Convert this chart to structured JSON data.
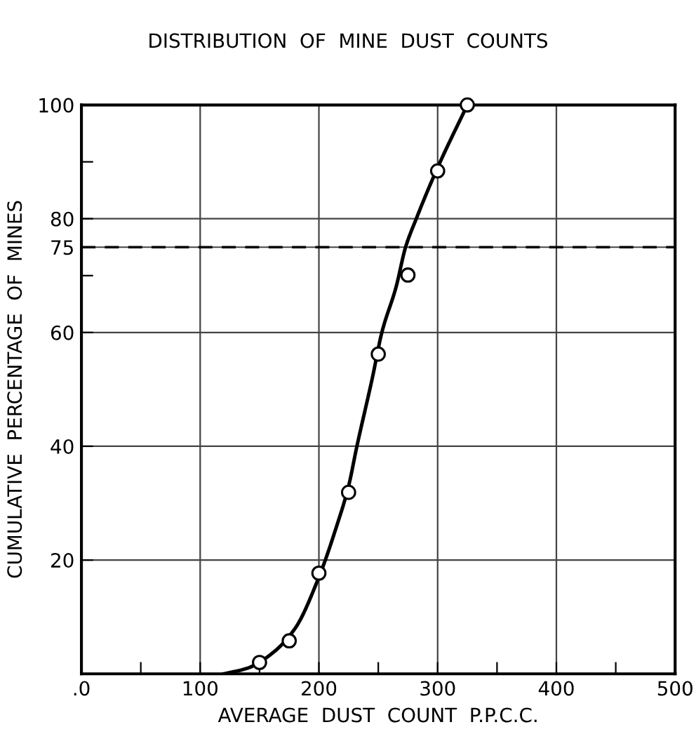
{
  "chart_data": {
    "type": "scatter",
    "title": "DISTRIBUTION  OF  MINE  DUST  COUNTS",
    "xlabel": "AVERAGE  DUST  COUNT  P.P.C.C.",
    "ylabel": "CUMULATIVE  PERCENTAGE  OF  MINES",
    "xlim": [
      0,
      500
    ],
    "ylim": [
      0,
      100
    ],
    "xticks": [
      {
        "value": 0,
        "label": ".0"
      },
      {
        "value": 50,
        "label": null
      },
      100,
      {
        "value": 150,
        "label": null
      },
      200,
      {
        "value": 250,
        "label": null
      },
      300,
      {
        "value": 350,
        "label": null
      },
      400,
      {
        "value": 450,
        "label": null
      },
      500
    ],
    "yticks": [
      20,
      40,
      60,
      {
        "value": 70,
        "label": null
      },
      75,
      80,
      {
        "value": 90,
        "label": null
      },
      100
    ],
    "grid": true,
    "series": [
      {
        "marker": "circle",
        "color": "#000000",
        "x": [
          150,
          175,
          200,
          225,
          250,
          275,
          300,
          325
        ],
        "values": [
          2,
          5.8,
          17.7,
          31.9,
          56.2,
          70.1,
          88.4,
          100
        ]
      },
      {
        "type": "line",
        "marker": "none",
        "color": "#000000",
        "x": [
          120,
          140,
          160,
          180,
          200,
          215,
          225,
          232,
          245,
          253,
          265,
          273,
          282,
          300,
          325
        ],
        "values": [
          0,
          1,
          3.5,
          8,
          17,
          26,
          33,
          40,
          52,
          60,
          68,
          75,
          80,
          89,
          100
        ]
      }
    ],
    "ref_lines": [
      {
        "axis": "y",
        "value": 75,
        "color": "#000000",
        "line_style": "dashed"
      }
    ]
  }
}
